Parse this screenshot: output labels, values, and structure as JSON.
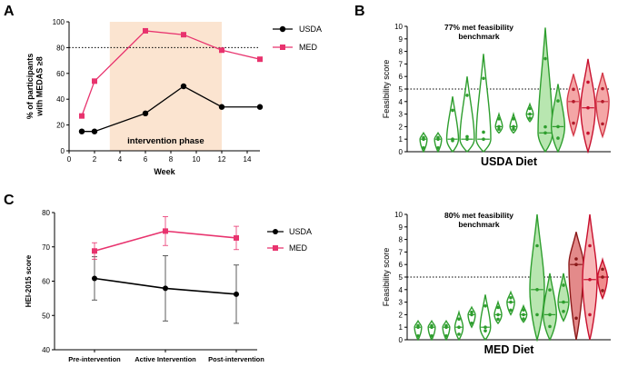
{
  "panels": {
    "a": "A",
    "b": "B",
    "c": "C"
  },
  "colors": {
    "usda": "#000000",
    "med": "#e8336e",
    "shade": "#fbe4d0",
    "green_dark": "#2e9e2e",
    "green_light": "#b8e6b0",
    "red_dark": "#c8102e",
    "red_light": "#f4a6a6"
  },
  "chart_data": [
    {
      "id": "A",
      "type": "line",
      "xlabel": "Week",
      "ylabel": "% of participants with MEDAS ≥8",
      "xlim": [
        0,
        15
      ],
      "ylim": [
        0,
        100
      ],
      "xticks": [
        0,
        2,
        4,
        6,
        8,
        10,
        12,
        14
      ],
      "yticks": [
        0,
        20,
        40,
        60,
        80,
        100
      ],
      "reference_line": 80,
      "shaded_region": {
        "x0": 3.2,
        "x1": 12,
        "label": "intervention phase"
      },
      "series": [
        {
          "name": "USDA",
          "marker": "circle",
          "x": [
            1,
            2,
            6,
            9,
            12,
            15
          ],
          "y": [
            15,
            15,
            29,
            50,
            34,
            34
          ]
        },
        {
          "name": "MED",
          "marker": "square",
          "x": [
            1,
            2,
            6,
            9,
            12,
            15
          ],
          "y": [
            27,
            54,
            93,
            90,
            78,
            71
          ]
        }
      ]
    },
    {
      "id": "B-top",
      "type": "violin",
      "title": "77% met feasibility benchmark",
      "title_lines": [
        "77% met feasibility",
        "benchmark"
      ],
      "ylabel": "Feasibility score",
      "xlabel": "USDA Diet",
      "ylim": [
        0,
        10
      ],
      "yticks": [
        0,
        1,
        2,
        3,
        4,
        5,
        6,
        7,
        8,
        9,
        10
      ],
      "reference_line": 5,
      "violins": [
        {
          "min": 0,
          "max": 1.5,
          "median": 1,
          "shade": "dark"
        },
        {
          "min": 0,
          "max": 1.5,
          "median": 1,
          "shade": "dark"
        },
        {
          "min": 0,
          "max": 4.4,
          "median": 1,
          "shade": "dark"
        },
        {
          "min": 0,
          "max": 6,
          "median": 1,
          "shade": "dark"
        },
        {
          "min": 0,
          "max": 7.8,
          "median": 1,
          "shade": "dark"
        },
        {
          "min": 1.5,
          "max": 3,
          "median": 2,
          "shade": "dark"
        },
        {
          "min": 1.5,
          "max": 3,
          "median": 2,
          "shade": "dark"
        },
        {
          "min": 2.4,
          "max": 3.8,
          "median": 3,
          "shade": "dark"
        },
        {
          "min": 0,
          "max": 9.9,
          "median": 1.5,
          "shade": "light"
        },
        {
          "min": 0,
          "max": 5.4,
          "median": 2,
          "shade": "light"
        },
        {
          "min": 1.3,
          "max": 6.2,
          "median": 4,
          "shade": "redlight"
        },
        {
          "min": 0,
          "max": 7.4,
          "median": 3.5,
          "shade": "red"
        },
        {
          "min": 1.2,
          "max": 6.3,
          "median": 4,
          "shade": "redlight"
        }
      ]
    },
    {
      "id": "C",
      "type": "line",
      "ylabel": "HEI-2015 score",
      "categories": [
        "Pre-intervention",
        "Active Intervention",
        "Post-intervention"
      ],
      "ylim": [
        40,
        80
      ],
      "yticks": [
        40,
        50,
        60,
        70,
        80
      ],
      "series": [
        {
          "name": "USDA",
          "marker": "circle",
          "values": [
            60.8,
            57.9,
            56.2
          ],
          "err": [
            6.3,
            9.5,
            8.5
          ]
        },
        {
          "name": "MED",
          "marker": "square",
          "values": [
            68.8,
            74.6,
            72.6
          ],
          "err": [
            2.4,
            4.2,
            3.4
          ]
        }
      ]
    },
    {
      "id": "B-bottom",
      "type": "violin",
      "title": "80% met feasibility benchmark",
      "title_lines": [
        "80% met feasibility",
        "benchmark"
      ],
      "ylabel": "Feasibility score",
      "xlabel": "MED Diet",
      "ylim": [
        0,
        10
      ],
      "yticks": [
        0,
        1,
        2,
        3,
        4,
        5,
        6,
        7,
        8,
        9,
        10
      ],
      "reference_line": 5,
      "violins": [
        {
          "min": 0,
          "max": 1.5,
          "median": 1,
          "shade": "dark"
        },
        {
          "min": 0,
          "max": 1.5,
          "median": 1,
          "shade": "dark"
        },
        {
          "min": 0,
          "max": 1.5,
          "median": 1,
          "shade": "dark"
        },
        {
          "min": 0,
          "max": 2.2,
          "median": 1,
          "shade": "dark"
        },
        {
          "min": 1,
          "max": 2.6,
          "median": 2,
          "shade": "dark"
        },
        {
          "min": 0,
          "max": 3.6,
          "median": 1,
          "shade": "dark"
        },
        {
          "min": 1.3,
          "max": 3,
          "median": 2,
          "shade": "dark"
        },
        {
          "min": 2,
          "max": 3.8,
          "median": 3,
          "shade": "dark"
        },
        {
          "min": 1.4,
          "max": 2.7,
          "median": 2,
          "shade": "dark"
        },
        {
          "min": 0,
          "max": 10,
          "median": 4,
          "shade": "light"
        },
        {
          "min": 0,
          "max": 5.3,
          "median": 2,
          "shade": "light"
        },
        {
          "min": 1.5,
          "max": 5.3,
          "median": 3,
          "shade": "light"
        },
        {
          "min": 0,
          "max": 8.6,
          "median": 6,
          "shade": "reddark"
        },
        {
          "min": 0,
          "max": 10,
          "median": 4.8,
          "shade": "red"
        },
        {
          "min": 3.3,
          "max": 6.4,
          "median": 5,
          "shade": "redmid"
        }
      ]
    }
  ]
}
